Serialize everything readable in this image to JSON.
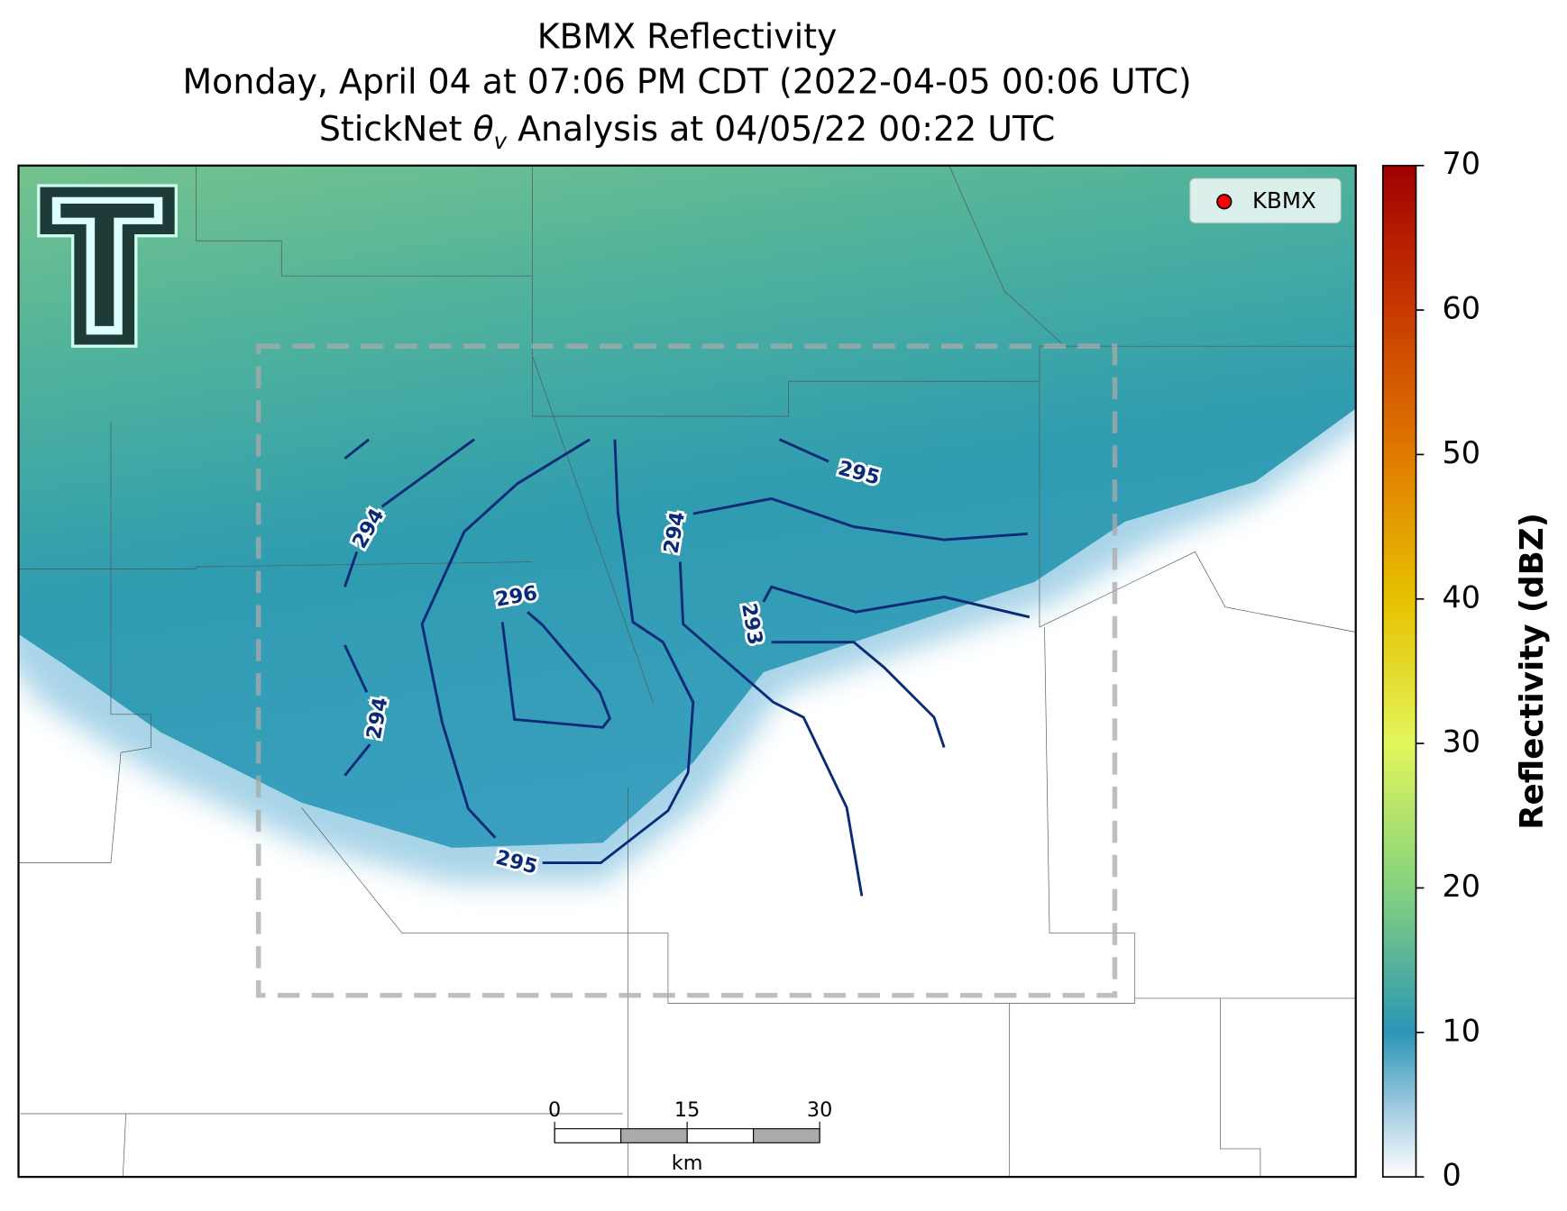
{
  "title": {
    "line1": "KBMX Reflectivity",
    "line2": "Monday, April 04 at 07:06 PM CDT (2022-04-05 00:06 UTC)",
    "line3": {
      "prefix": "StickNet ",
      "symbol": "θ",
      "subscript": "v",
      "suffix": " Analysis at 04/05/22 00:22 UTC"
    }
  },
  "legend": {
    "label": "KBMX",
    "color": "#ff0000"
  },
  "contour_labels": [
    294,
    294,
    294,
    295,
    295,
    296,
    293
  ],
  "colorbar": {
    "label": "Reflectivity (dBZ)",
    "lim": [
      0,
      70
    ],
    "ticks": [
      0,
      10,
      20,
      30,
      40,
      50,
      60,
      70
    ]
  },
  "scale_bar": {
    "ticks": [
      0,
      15,
      30
    ],
    "unit": "km"
  }
}
